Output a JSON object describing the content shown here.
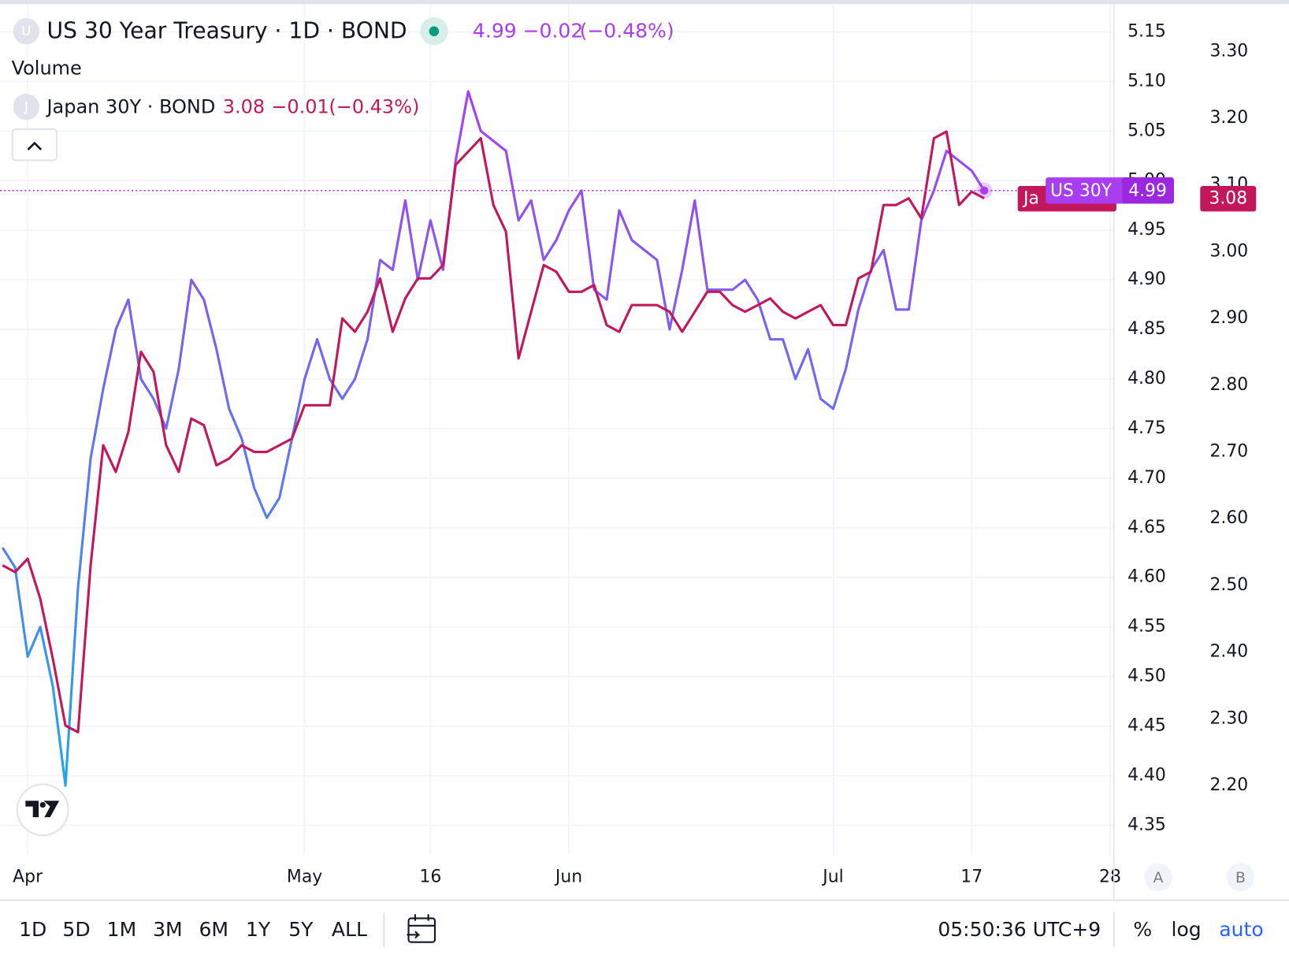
{
  "chart_data": {
    "type": "line",
    "x": [
      -2,
      -1,
      0,
      1,
      2,
      3,
      4,
      5,
      6,
      7,
      8,
      9,
      10,
      11,
      12,
      13,
      14,
      15,
      16,
      17,
      18,
      19,
      20,
      21,
      22,
      23,
      24,
      25,
      26,
      27,
      28,
      29,
      30,
      31,
      32,
      33,
      34,
      35,
      36,
      37,
      38,
      39,
      40,
      41,
      42,
      43,
      44,
      45,
      46,
      47,
      48,
      49,
      50,
      51,
      52,
      53,
      54,
      55,
      56,
      57,
      58,
      59,
      60,
      61,
      62,
      63,
      64,
      65,
      66,
      67,
      68,
      69,
      70,
      71,
      72,
      73,
      74,
      75,
      76
    ],
    "series": [
      {
        "name": "US 30 Year Treasury · 1D · BOND",
        "colors": [
          "#1ea8ee",
          "#a93df2"
        ],
        "axis": "y",
        "values": [
          4.63,
          4.61,
          4.52,
          4.55,
          4.49,
          4.39,
          4.59,
          4.72,
          4.79,
          4.85,
          4.88,
          4.8,
          4.78,
          4.75,
          4.81,
          4.9,
          4.88,
          4.83,
          4.77,
          4.74,
          4.69,
          4.66,
          4.68,
          4.74,
          4.8,
          4.84,
          4.8,
          4.78,
          4.8,
          4.84,
          4.92,
          4.91,
          4.98,
          4.9,
          4.96,
          4.91,
          5.02,
          5.09,
          5.05,
          5.04,
          5.03,
          4.96,
          4.98,
          4.92,
          4.94,
          4.97,
          4.99,
          4.89,
          4.88,
          4.97,
          4.94,
          4.93,
          4.92,
          4.85,
          4.91,
          4.98,
          4.89,
          4.89,
          4.89,
          4.9,
          4.88,
          4.84,
          4.84,
          4.8,
          4.83,
          4.78,
          4.77,
          4.81,
          4.87,
          4.91,
          4.93,
          4.87,
          4.87,
          4.96,
          4.99,
          5.03,
          5.02,
          5.01,
          4.99
        ]
      },
      {
        "name": "Japan 30Y · BOND",
        "colors": [
          "#c2185b"
        ],
        "axis": "y2",
        "values": [
          2.53,
          2.52,
          2.54,
          2.48,
          2.39,
          2.29,
          2.28,
          2.53,
          2.71,
          2.67,
          2.73,
          2.85,
          2.82,
          2.71,
          2.67,
          2.75,
          2.74,
          2.68,
          2.69,
          2.71,
          2.7,
          2.7,
          2.71,
          2.72,
          2.77,
          2.77,
          2.77,
          2.9,
          2.88,
          2.91,
          2.96,
          2.88,
          2.93,
          2.96,
          2.96,
          2.98,
          3.13,
          3.15,
          3.17,
          3.07,
          3.03,
          2.84,
          2.91,
          2.98,
          2.97,
          2.94,
          2.94,
          2.95,
          2.89,
          2.88,
          2.92,
          2.92,
          2.92,
          2.91,
          2.88,
          2.91,
          2.94,
          2.94,
          2.92,
          2.91,
          2.92,
          2.93,
          2.91,
          2.9,
          2.91,
          2.92,
          2.89,
          2.89,
          2.96,
          2.97,
          3.07,
          3.07,
          3.08,
          3.05,
          3.17,
          3.18,
          3.07,
          3.09,
          3.08
        ]
      }
    ],
    "xlim": [
      -2.2,
      86.3
    ],
    "xticks": [
      {
        "value": 0,
        "label": "Apr"
      },
      {
        "value": 22,
        "label": "May"
      },
      {
        "value": 32,
        "label": "16"
      },
      {
        "value": 43,
        "label": "Jun"
      },
      {
        "value": 64,
        "label": "Jul"
      },
      {
        "value": 75,
        "label": "17"
      },
      {
        "value": 86,
        "label": "28"
      }
    ],
    "ylim": [
      4.32,
      5.178
    ],
    "yticks": [
      4.35,
      {
        "value": 4.4,
        "label": "4.40"
      },
      4.45,
      {
        "value": 4.5,
        "label": "4.50"
      },
      4.55,
      {
        "value": 4.6,
        "label": "4.60"
      },
      4.65,
      {
        "value": 4.7,
        "label": "4.70"
      },
      4.75,
      {
        "value": 4.8,
        "label": "4.80"
      },
      4.85,
      {
        "value": 4.9,
        "label": "4.90"
      },
      4.95,
      {
        "value": 5,
        "label": "5.00"
      },
      5.05,
      {
        "value": 5.1,
        "label": "5.10"
      },
      5.15
    ],
    "y2lim": [
      2.096,
      3.371
    ],
    "y2ticks": [
      {
        "value": 2.2,
        "label": "2.20"
      },
      {
        "value": 2.3,
        "label": "2.30"
      },
      {
        "value": 2.4,
        "label": "2.40"
      },
      {
        "value": 2.5,
        "label": "2.50"
      },
      {
        "value": 2.6,
        "label": "2.60"
      },
      {
        "value": 2.7,
        "label": "2.70"
      },
      {
        "value": 2.8,
        "label": "2.80"
      },
      {
        "value": 2.9,
        "label": "2.90"
      },
      {
        "value": 3,
        "label": "3.00"
      },
      {
        "value": 3.1,
        "label": "3.10"
      },
      {
        "value": 3.2,
        "label": "3.20"
      },
      {
        "value": 3.3,
        "label": "3.30"
      }
    ],
    "grid": true,
    "price_tags": [
      {
        "name": "US 30Y",
        "label": "4.99"
      },
      {
        "name": "Ja",
        "label": "3.08"
      }
    ]
  },
  "legend": [
    {
      "symbol": "U",
      "last": "4.99",
      "change": "−0.02",
      "change_pct": "(−0.48%)"
    },
    {
      "symbol": "J",
      "last": "3.08",
      "change": "−0.01",
      "change_pct": "(−0.43%)"
    }
  ],
  "volume_label": "Volume",
  "axis_buttons": [
    "A",
    "B"
  ],
  "toolbar": {
    "ranges": [
      "1D",
      "5D",
      "1M",
      "3M",
      "6M",
      "1Y",
      "5Y",
      "ALL"
    ],
    "time": "05:50:36 UTC+9",
    "scale_buttons": [
      "%",
      "log",
      "auto"
    ]
  }
}
